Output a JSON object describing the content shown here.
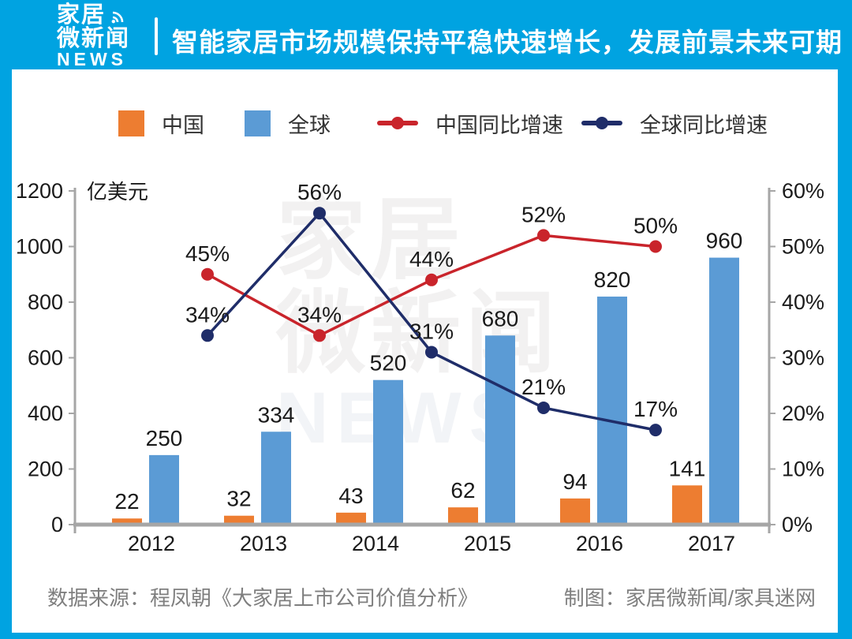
{
  "header": {
    "logo": {
      "line1": "家居",
      "line2": "微新闻",
      "line3": "NEWS"
    },
    "title": "智能家居市场规模保持平稳快速增长，发展前景未来可期"
  },
  "colors": {
    "page_bg": "#00A3E1",
    "china_bar": "#ED7D31",
    "global_bar": "#5B9BD5",
    "china_growth_line": "#C9242B",
    "global_growth_line": "#1F2D69",
    "axis": "#A6A6A6"
  },
  "legend": [
    {
      "label": "中国",
      "marker": "box",
      "color": "#ED7D31"
    },
    {
      "label": "全球",
      "marker": "box",
      "color": "#5B9BD5"
    },
    {
      "label": "中国同比增速",
      "marker": "line",
      "color": "#C9242B"
    },
    {
      "label": "全球同比增速",
      "marker": "line",
      "color": "#1F2D69"
    }
  ],
  "chart_data": {
    "type": "combo-bar-line",
    "title": "智能家居市场规模保持平稳快速增长，发展前景未来可期",
    "categories": [
      "2012",
      "2013",
      "2014",
      "2015",
      "2016",
      "2017"
    ],
    "series": [
      {
        "name": "中国",
        "type": "bar",
        "axis": "left",
        "color": "#ED7D31",
        "values": [
          22,
          32,
          43,
          62,
          94,
          141
        ]
      },
      {
        "name": "全球",
        "type": "bar",
        "axis": "left",
        "color": "#5B9BD5",
        "values": [
          250,
          334,
          520,
          680,
          820,
          960
        ]
      },
      {
        "name": "中国同比增速",
        "type": "line",
        "axis": "right",
        "color": "#C9242B",
        "x_positions": [
          0.5,
          1.5,
          2.5,
          3.5,
          4.5
        ],
        "values": [
          45,
          34,
          44,
          52,
          50
        ],
        "labels": [
          "45%",
          "34%",
          "44%",
          "52%",
          "50%"
        ]
      },
      {
        "name": "全球同比增速",
        "type": "line",
        "axis": "right",
        "color": "#1F2D69",
        "x_positions": [
          0.5,
          1.5,
          2.5,
          3.5,
          4.5
        ],
        "values": [
          34,
          56,
          31,
          21,
          17
        ],
        "labels": [
          "34%",
          "56%",
          "31%",
          "21%",
          "17%"
        ]
      }
    ],
    "left_axis": {
      "label": "亿美元",
      "min": 0,
      "max": 1200,
      "tick_step": 200,
      "ticks": [
        "0",
        "200",
        "400",
        "600",
        "800",
        "1000",
        "1200"
      ]
    },
    "right_axis": {
      "min": 0,
      "max": 60,
      "tick_step": 10,
      "ticks": [
        "0%",
        "10%",
        "20%",
        "30%",
        "40%",
        "50%",
        "60%"
      ]
    },
    "grid": false,
    "legend_position": "top"
  },
  "watermark": {
    "lines": [
      "家居",
      "微新闻",
      "NEWS"
    ]
  },
  "footer": {
    "source": "数据来源：程凤朝《大家居上市公司价值分析》",
    "credit": "制图：家居微新闻/家具迷网"
  }
}
